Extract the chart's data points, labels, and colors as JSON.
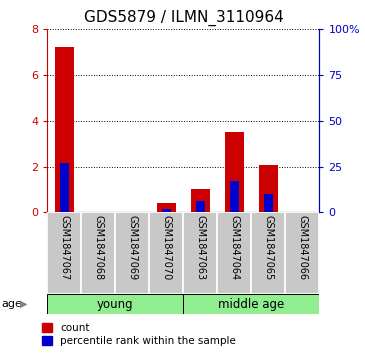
{
  "title": "GDS5879 / ILMN_3110964",
  "samples": [
    "GSM1847067",
    "GSM1847068",
    "GSM1847069",
    "GSM1847070",
    "GSM1847063",
    "GSM1847064",
    "GSM1847065",
    "GSM1847066"
  ],
  "red_values": [
    7.2,
    0.0,
    0.0,
    0.4,
    1.0,
    3.5,
    2.05,
    0.0
  ],
  "blue_values_pct": [
    27.0,
    0.0,
    0.0,
    2.0,
    6.0,
    17.0,
    10.0,
    0.0
  ],
  "left_ylim": [
    0,
    8
  ],
  "right_ylim": [
    0,
    100
  ],
  "left_yticks": [
    0,
    2,
    4,
    6,
    8
  ],
  "right_yticks": [
    0,
    25,
    50,
    75,
    100
  ],
  "right_yticklabels": [
    "0",
    "25",
    "50",
    "75",
    "100%"
  ],
  "bar_color_red": "#cc0000",
  "bar_color_blue": "#0000cc",
  "bg_gray": "#c8c8c8",
  "bg_green": "#90ee90",
  "age_label": "age",
  "legend_red": "count",
  "legend_blue": "percentile rank within the sample",
  "title_fontsize": 11,
  "bar_width": 0.55,
  "blue_bar_width": 0.25,
  "young_label": "young",
  "middle_label": "middle age",
  "young_count": 4,
  "middle_count": 4
}
